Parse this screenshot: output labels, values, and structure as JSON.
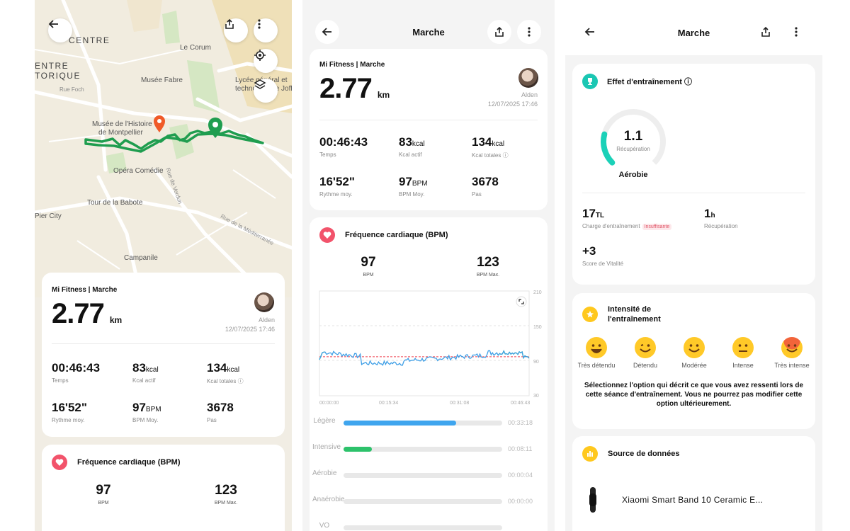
{
  "map": {
    "labels": {
      "centre": "CENTRE",
      "centre_historique_1": "ENTRE",
      "centre_historique_2": "TORIQUE",
      "le_corum": "Le Corum",
      "musee_fabre": "Musée Fabre",
      "rue_foch": "Rue Foch",
      "lycee_1": "Lycée général et",
      "lycee_2": "technologique Joffre",
      "musee_histoire_1": "Musée de l'Histoire",
      "musee_histoire_2": "de Montpellier",
      "opera": "Opéra Comédie",
      "rue_verdun": "Rue de Verdun",
      "tour_babote": "Tour de la Babote",
      "rue_mediterranee": "Rue de la Méditerranée",
      "pier_city": "Pier City",
      "campanile": "Campanile"
    }
  },
  "summary": {
    "brand": "Mi Fitness | Marche",
    "distance": "2.77",
    "distance_unit": "km",
    "user": "Alden",
    "datetime": "12/07/2025 17:46",
    "stats": [
      {
        "value": "00:46:43",
        "unit": "",
        "label": "Temps"
      },
      {
        "value": "83",
        "unit": "kcal",
        "label": "Kcal actif"
      },
      {
        "value": "134",
        "unit": "kcal",
        "label": "Kcal totales ⓘ"
      },
      {
        "value": "16'52\"",
        "unit": "",
        "label": "Rythme moy."
      },
      {
        "value": "97",
        "unit": "BPM",
        "label": "BPM Moy."
      },
      {
        "value": "3678",
        "unit": "",
        "label": "Pas"
      }
    ]
  },
  "heart_rate": {
    "title": "Fréquence cardiaque (BPM)",
    "avg_value": "97",
    "avg_label": "BPM",
    "max_value": "123",
    "max_label": "BPM Max.",
    "chart": {
      "y_ticks": [
        "210",
        "150",
        "90",
        "30"
      ],
      "x_ticks": [
        "00:00:00",
        "00:15:34",
        "00:31:08",
        "00:46:43"
      ],
      "avg_line": 97
    },
    "zones": [
      {
        "label": "Légère",
        "time": "00:33:18",
        "fraction": 0.71,
        "color": "#3fa5ee"
      },
      {
        "label": "Intensive",
        "time": "00:08:11",
        "fraction": 0.18,
        "color": "#2dc26b"
      },
      {
        "label": "Aérobie",
        "time": "00:00:04",
        "fraction": 0.0,
        "color": "#f0a93b"
      },
      {
        "label": "Anaérobie",
        "time": "00:00:00",
        "fraction": 0.0,
        "color": "#f06b3b"
      },
      {
        "label": "VO",
        "time": "",
        "fraction": 0.0,
        "color": "#e9425e"
      }
    ]
  },
  "screen2": {
    "title": "Marche"
  },
  "screen3": {
    "title": "Marche",
    "training_effect": {
      "title": "Effet d'entraînement ⓘ",
      "value": "1.1",
      "value_label": "Récupération",
      "fraction": 0.22,
      "type": "Aérobie",
      "load_value": "17",
      "load_unit": "TL",
      "load_label": "Charge d'entraînement",
      "load_tag": "Insuffisante",
      "recovery_value": "1",
      "recovery_unit": "h",
      "recovery_label": "Récupération",
      "vitality_value": "+3",
      "vitality_label": "Score de Vitalité"
    },
    "intensity": {
      "title_1": "Intensité de",
      "title_2": "l'entraînement",
      "options": [
        "Très détendu",
        "Détendu",
        "Modérée",
        "Intense",
        "Très intense"
      ],
      "hint": "Sélectionnez l'option qui décrit ce que vous avez ressenti lors de cette séance d'entraînement. Vous ne pourrez pas modifier cette option ultérieurement."
    },
    "source": {
      "title": "Source de données",
      "device": "Xiaomi Smart Band 10 Ceramic E..."
    }
  },
  "colors": {
    "route": "#1f9d4f",
    "accent_red": "#f2536b",
    "hr_line": "#3f9fe6",
    "hr_green": "#29c25a"
  }
}
